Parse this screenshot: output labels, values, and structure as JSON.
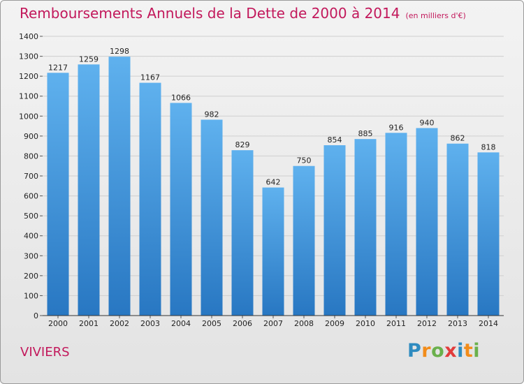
{
  "title": "Remboursements Annuels de la Dette de 2000 à 2014",
  "subtitle": "(en milliers d'€)",
  "location": "VIVIERS",
  "logo": {
    "text": "Proxiti",
    "colors": [
      "#2e8bc0",
      "#f28c1a",
      "#6ab04c",
      "#e23b3b",
      "#2e8bc0",
      "#f28c1a",
      "#6ab04c"
    ]
  },
  "colors": {
    "bar_light": "#5fb1ee",
    "bar_dark": "#2877c2",
    "title": "#c2185b"
  },
  "chart_data": {
    "type": "bar",
    "categories": [
      "2000",
      "2001",
      "2002",
      "2003",
      "2004",
      "2005",
      "2006",
      "2007",
      "2008",
      "2009",
      "2010",
      "2011",
      "2012",
      "2013",
      "2014"
    ],
    "values": [
      1217,
      1259,
      1298,
      1167,
      1066,
      982,
      829,
      642,
      750,
      854,
      885,
      916,
      940,
      862,
      818
    ],
    "value_labels": [
      "1217",
      "1259",
      "1298",
      "1167",
      "1066",
      "982",
      "829",
      "642",
      "750",
      "854",
      "885",
      "916",
      "940",
      "862",
      "818"
    ],
    "y_ticks": [
      "0",
      "100",
      "200",
      "300",
      "400",
      "500",
      "600",
      "700",
      "800",
      "900",
      "1000",
      "1100",
      "1200",
      "1300",
      "1400"
    ],
    "ylim": [
      0,
      1400
    ],
    "grid": true
  }
}
